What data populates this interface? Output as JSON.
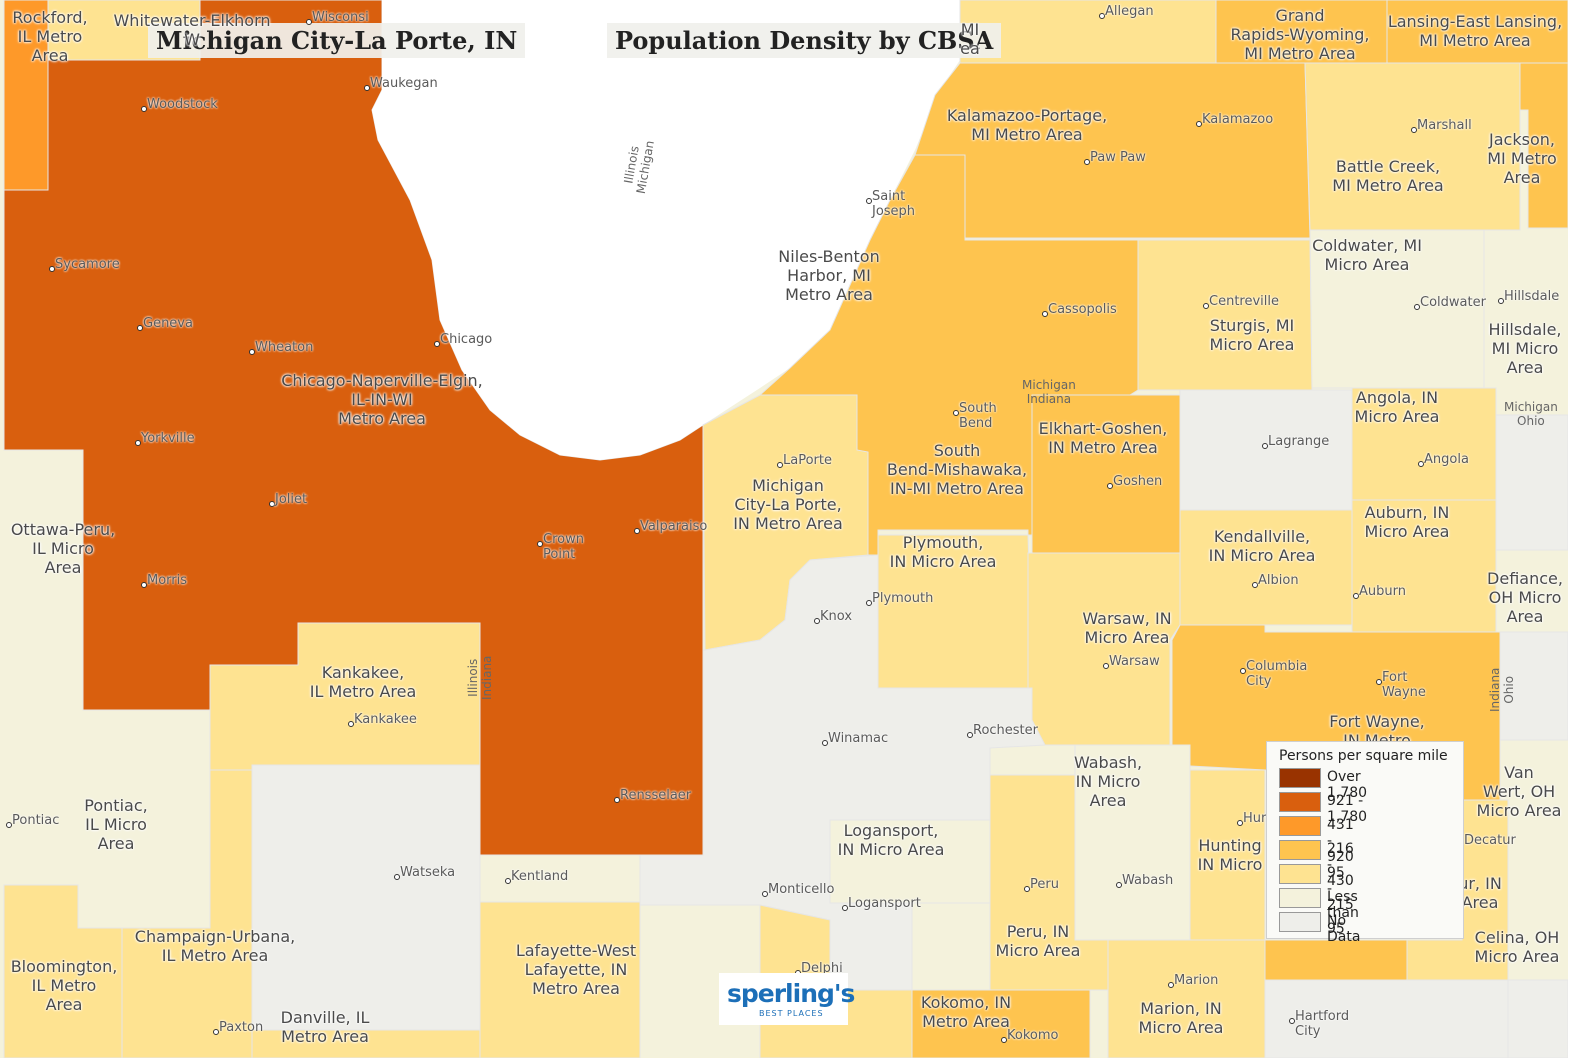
{
  "map": {
    "title_left": "Michigan City-La Porte, IN",
    "title_right": "Population Density by CBSA",
    "legend": {
      "title": "Persons per square mile",
      "items": [
        {
          "label": "Over 1,780",
          "color": "#993300"
        },
        {
          "label": "921 - 1,780",
          "color": "#d95f0e"
        },
        {
          "label": "431 - 920",
          "color": "#fe9929"
        },
        {
          "label": "216 - 430",
          "color": "#fec44f"
        },
        {
          "label": "95 - 215",
          "color": "#fee391"
        },
        {
          "label": "Less than 95",
          "color": "#f4f2dc"
        },
        {
          "label": "No Data",
          "color": "#eeeeea"
        }
      ]
    },
    "logo": {
      "brand": "sperling's",
      "tagline": "BEST PLACES"
    },
    "area_labels": [
      {
        "id": "rockford",
        "lines": [
          "Rockford,",
          "IL Metro",
          "Area"
        ]
      },
      {
        "id": "whitewater",
        "lines": [
          "Whitewater-Elkhorn",
          "W"
        ]
      },
      {
        "id": "holland",
        "lines": [
          "MI",
          "ea"
        ]
      },
      {
        "id": "grand-rapids",
        "lines": [
          "Grand",
          "Rapids-Wyoming,",
          "MI Metro Area"
        ]
      },
      {
        "id": "lansing",
        "lines": [
          "Lansing-East Lansing,",
          "MI Metro Area"
        ]
      },
      {
        "id": "kalamazoo",
        "lines": [
          "Kalamazoo-Portage,",
          "MI Metro Area"
        ]
      },
      {
        "id": "battle-creek",
        "lines": [
          "Battle Creek,",
          "MI Metro Area"
        ]
      },
      {
        "id": "jackson",
        "lines": [
          "Jackson,",
          "MI Metro",
          "Area"
        ]
      },
      {
        "id": "niles",
        "lines": [
          "Niles-Benton",
          "Harbor, MI",
          "Metro Area"
        ]
      },
      {
        "id": "coldwater",
        "lines": [
          "Coldwater, MI",
          "Micro Area"
        ]
      },
      {
        "id": "sturgis",
        "lines": [
          "Sturgis, MI",
          "Micro Area"
        ]
      },
      {
        "id": "hillsdale",
        "lines": [
          "Hillsdale,",
          "MI Micro",
          "Area"
        ]
      },
      {
        "id": "chicago",
        "lines": [
          "Chicago-Naperville-Elgin,",
          "IL-IN-WI",
          "Metro Area"
        ]
      },
      {
        "id": "angola",
        "lines": [
          "Angola, IN",
          "Micro Area"
        ]
      },
      {
        "id": "elkhart",
        "lines": [
          "Elkhart-Goshen,",
          "IN Metro Area"
        ]
      },
      {
        "id": "south-bend",
        "lines": [
          "South",
          "Bend-Mishawaka,",
          "IN-MI Metro Area"
        ]
      },
      {
        "id": "michigan-city",
        "lines": [
          "Michigan",
          "City-La Porte,",
          "IN Metro Area"
        ]
      },
      {
        "id": "ottawa",
        "lines": [
          "Ottawa-Peru,",
          "IL Micro",
          "Area"
        ]
      },
      {
        "id": "auburn",
        "lines": [
          "Auburn, IN",
          "Micro Area"
        ]
      },
      {
        "id": "kendallville",
        "lines": [
          "Kendallville,",
          "IN Micro Area"
        ]
      },
      {
        "id": "plymouth",
        "lines": [
          "Plymouth,",
          "IN Micro Area"
        ]
      },
      {
        "id": "defiance",
        "lines": [
          "Defiance,",
          "OH Micro",
          "Area"
        ]
      },
      {
        "id": "warsaw",
        "lines": [
          "Warsaw, IN",
          "Micro Area"
        ]
      },
      {
        "id": "kankakee",
        "lines": [
          "Kankakee,",
          "IL Metro Area"
        ]
      },
      {
        "id": "fort-wayne",
        "lines": [
          "Fort Wayne,",
          "IN Metro"
        ]
      },
      {
        "id": "wabash",
        "lines": [
          "Wabash,",
          "IN Micro",
          "Area"
        ]
      },
      {
        "id": "van-wert",
        "lines": [
          "Van",
          "Wert, OH",
          "Micro Area"
        ]
      },
      {
        "id": "pontiac",
        "lines": [
          "Pontiac,",
          "IL Micro",
          "Area"
        ]
      },
      {
        "id": "logansport",
        "lines": [
          "Logansport,",
          "IN Micro Area"
        ]
      },
      {
        "id": "huntington",
        "lines": [
          "Hunting",
          "IN Micro"
        ]
      },
      {
        "id": "decatur",
        "lines": [
          "ur, IN",
          "Area"
        ]
      },
      {
        "id": "champaign",
        "lines": [
          "Champaign-Urbana,",
          "IL Metro Area"
        ]
      },
      {
        "id": "peru-in",
        "lines": [
          "Peru, IN",
          "Micro Area"
        ]
      },
      {
        "id": "celina",
        "lines": [
          "Celina, OH",
          "Micro Area"
        ]
      },
      {
        "id": "bloomington",
        "lines": [
          "Bloomington,",
          "IL Metro",
          "Area"
        ]
      },
      {
        "id": "lafayette",
        "lines": [
          "Lafayette-West",
          "Lafayette, IN",
          "Metro Area"
        ]
      },
      {
        "id": "kokomo",
        "lines": [
          "Kokomo, IN",
          "Metro Area"
        ]
      },
      {
        "id": "marion",
        "lines": [
          "Marion, IN",
          "Micro Area"
        ]
      },
      {
        "id": "danville",
        "lines": [
          "Danville, IL",
          "Metro Area"
        ]
      }
    ],
    "cities": [
      {
        "id": "wisconsin-city",
        "lines": [
          "Wisconsi"
        ]
      },
      {
        "id": "allegan",
        "lines": [
          "Allegan"
        ]
      },
      {
        "id": "waukegan",
        "lines": [
          "Waukegan"
        ]
      },
      {
        "id": "woodstock",
        "lines": [
          "Woodstock"
        ]
      },
      {
        "id": "kalamazoo-city",
        "lines": [
          "Kalamazoo"
        ]
      },
      {
        "id": "marshall",
        "lines": [
          "Marshall"
        ]
      },
      {
        "id": "paw-paw",
        "lines": [
          "Paw Paw"
        ]
      },
      {
        "id": "saint-joseph",
        "lines": [
          "Saint",
          "Joseph"
        ]
      },
      {
        "id": "sycamore",
        "lines": [
          "Sycamore"
        ]
      },
      {
        "id": "centreville",
        "lines": [
          "Centreville"
        ]
      },
      {
        "id": "coldwater-city",
        "lines": [
          "Coldwater"
        ]
      },
      {
        "id": "hillsdale-city",
        "lines": [
          "Hillsdale"
        ]
      },
      {
        "id": "cassopolis",
        "lines": [
          "Cassopolis"
        ]
      },
      {
        "id": "geneva",
        "lines": [
          "Geneva"
        ]
      },
      {
        "id": "chicago-city",
        "lines": [
          "Chicago"
        ]
      },
      {
        "id": "wheaton",
        "lines": [
          "Wheaton"
        ]
      },
      {
        "id": "south-bend-city",
        "lines": [
          "South",
          "Bend"
        ]
      },
      {
        "id": "lagrange",
        "lines": [
          "Lagrange"
        ]
      },
      {
        "id": "yorkville",
        "lines": [
          "Yorkville"
        ]
      },
      {
        "id": "laporte",
        "lines": [
          "LaPorte"
        ]
      },
      {
        "id": "angola-city",
        "lines": [
          "Angola"
        ]
      },
      {
        "id": "goshen",
        "lines": [
          "Goshen"
        ]
      },
      {
        "id": "joliet",
        "lines": [
          "Joliet"
        ]
      },
      {
        "id": "valparaiso",
        "lines": [
          "Valparaiso"
        ]
      },
      {
        "id": "crown-point",
        "lines": [
          "Crown",
          "Point"
        ]
      },
      {
        "id": "albion",
        "lines": [
          "Albion"
        ]
      },
      {
        "id": "morris",
        "lines": [
          "Morris"
        ]
      },
      {
        "id": "auburn-city",
        "lines": [
          "Auburn"
        ]
      },
      {
        "id": "plymouth-city",
        "lines": [
          "Plymouth"
        ]
      },
      {
        "id": "knox",
        "lines": [
          "Knox"
        ]
      },
      {
        "id": "warsaw-city",
        "lines": [
          "Warsaw"
        ]
      },
      {
        "id": "columbia-city",
        "lines": [
          "Columbia",
          "City"
        ]
      },
      {
        "id": "fort-wayne-city",
        "lines": [
          "Fort",
          "Wayne"
        ]
      },
      {
        "id": "kankakee-city",
        "lines": [
          "Kankakee"
        ]
      },
      {
        "id": "rochester",
        "lines": [
          "Rochester"
        ]
      },
      {
        "id": "winamac",
        "lines": [
          "Winamac"
        ]
      },
      {
        "id": "rensselaer",
        "lines": [
          "Rensselaer"
        ]
      },
      {
        "id": "pontiac-city",
        "lines": [
          "Pontiac"
        ]
      },
      {
        "id": "huntington-city",
        "lines": [
          "Hur"
        ]
      },
      {
        "id": "decatur-city",
        "lines": [
          "Decatur"
        ]
      },
      {
        "id": "watseka",
        "lines": [
          "Watseka"
        ]
      },
      {
        "id": "kentland",
        "lines": [
          "Kentland"
        ]
      },
      {
        "id": "wabash-city",
        "lines": [
          "Wabash"
        ]
      },
      {
        "id": "peru-city",
        "lines": [
          "Peru"
        ]
      },
      {
        "id": "monticello",
        "lines": [
          "Monticello"
        ]
      },
      {
        "id": "logansport-city",
        "lines": [
          "Logansport"
        ]
      },
      {
        "id": "delphi",
        "lines": [
          "Delphi"
        ]
      },
      {
        "id": "marion-city",
        "lines": [
          "Marion"
        ]
      },
      {
        "id": "hartford-city",
        "lines": [
          "Hartford",
          "City"
        ]
      },
      {
        "id": "paxton",
        "lines": [
          "Paxton"
        ]
      },
      {
        "id": "kokomo-city",
        "lines": [
          "Kokomo"
        ]
      }
    ],
    "state_labels": [
      {
        "id": "il-mi-lake",
        "lines": [
          "Illinois",
          "Michigan"
        ]
      },
      {
        "id": "mi-in",
        "lines": [
          "Michigan",
          "Indiana"
        ]
      },
      {
        "id": "mi-oh",
        "lines": [
          "Michigan",
          "Ohio"
        ]
      },
      {
        "id": "il-in",
        "lines": [
          "Illinois",
          "Indiana"
        ]
      },
      {
        "id": "in-oh",
        "lines": [
          "Indiana",
          "Ohio"
        ]
      }
    ]
  }
}
